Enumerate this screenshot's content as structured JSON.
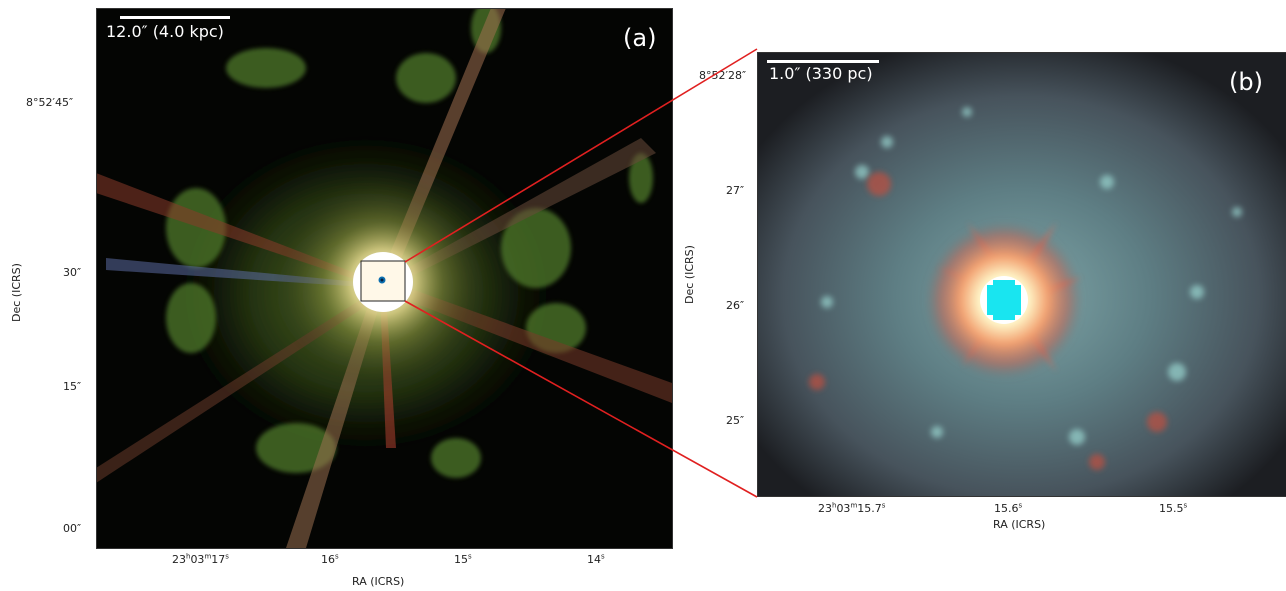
{
  "panel_a": {
    "label": "(a)",
    "scale_label": "12.0″ (4.0 kpc)",
    "ylabel": "Dec (ICRS)",
    "xlabel": "RA (ICRS)",
    "yticks": [
      "8°52′45″",
      "30″",
      "15″",
      "00″"
    ],
    "xticks": [
      {
        "prefix": "23",
        "h": "h",
        "mid": "03",
        "m": "m",
        "val": "17",
        "s": "s"
      },
      {
        "val": "16",
        "s": "s"
      },
      {
        "val": "15",
        "s": "s"
      },
      {
        "val": "14",
        "s": "s"
      }
    ]
  },
  "panel_b": {
    "label": "(b)",
    "scale_label": "1.0″ (330 pc)",
    "ylabel": "Dec (ICRS)",
    "xlabel": "RA (ICRS)",
    "yticks": [
      "8°52′28″",
      "27″",
      "26″",
      "25″"
    ],
    "xticks": [
      {
        "prefix": "23",
        "h": "h",
        "mid": "03",
        "m": "m",
        "val": "15.7",
        "s": "s"
      },
      {
        "val": "15.6",
        "s": "s"
      },
      {
        "val": "15.5",
        "s": "s"
      }
    ]
  },
  "colors": {
    "connector": "#e02020",
    "scalebar": "#ffffff",
    "core_cyan": "#19e5f0"
  }
}
